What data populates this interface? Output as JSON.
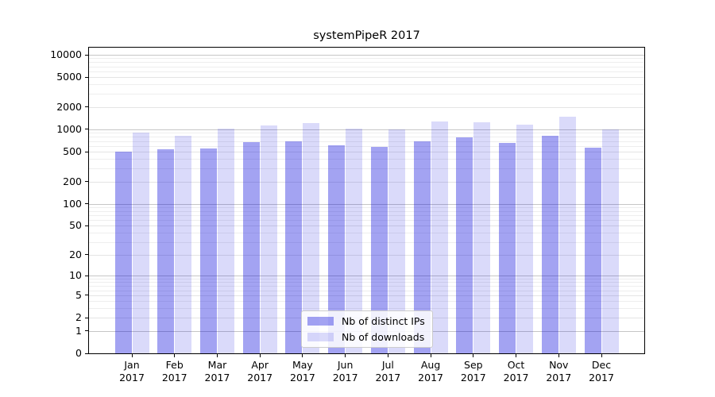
{
  "chart_data": {
    "type": "bar",
    "scale": "log1p",
    "title": "systemPipeR 2017",
    "categories": [
      "Jan",
      "Feb",
      "Mar",
      "Apr",
      "May",
      "Jun",
      "Jul",
      "Aug",
      "Sep",
      "Oct",
      "Nov",
      "Dec"
    ],
    "x_year_label": "2017",
    "series": [
      {
        "name": "Nb of distinct IPs",
        "color": "rgba(0,0,220,0.36)",
        "approx_hex_on_white": "#a3a3f2",
        "values": [
          505,
          540,
          550,
          670,
          685,
          610,
          585,
          700,
          790,
          660,
          820,
          570
        ]
      },
      {
        "name": "Nb of downloads",
        "color": "rgba(0,0,220,0.145)",
        "approx_hex_on_white": "#dadafa",
        "values": [
          900,
          815,
          1020,
          1120,
          1215,
          1030,
          1000,
          1265,
          1235,
          1165,
          1480,
          990
        ]
      }
    ],
    "yticks": [
      0,
      1,
      2,
      5,
      10,
      20,
      50,
      100,
      200,
      500,
      1000,
      2000,
      5000,
      10000
    ],
    "ylim": [
      0,
      12470
    ],
    "grid": true,
    "legend_position": "lower-center-inside",
    "colors": {
      "decade_grid": "#c6c6c6",
      "labeled_grid": "#e4e4e4",
      "minor_grid": "#eeeeee",
      "axis": "#000000",
      "text": "#000000",
      "legend_border": "#cccccc"
    }
  }
}
